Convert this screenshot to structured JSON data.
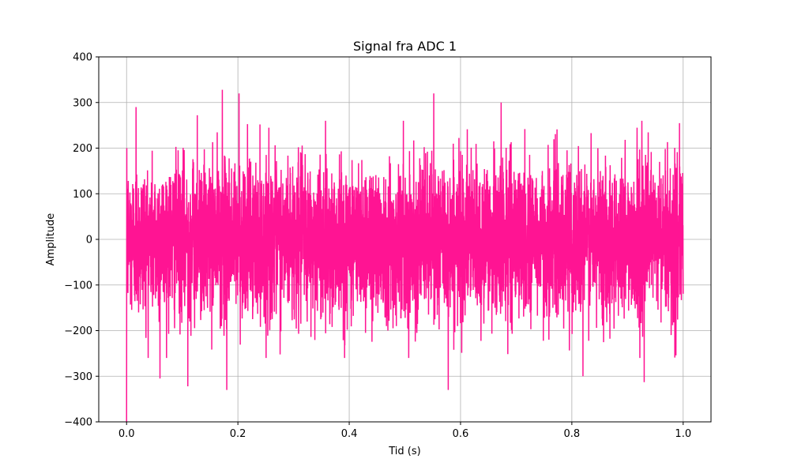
{
  "chart_data": {
    "type": "line",
    "title": "Signal fra ADC 1",
    "xlabel": "Tid (s)",
    "ylabel": "Amplitude",
    "xlim": [
      -0.05,
      1.05
    ],
    "ylim": [
      -400,
      400
    ],
    "xticks": [
      0.0,
      0.2,
      0.4,
      0.6,
      0.8,
      1.0
    ],
    "xtick_labels": [
      "0.0",
      "0.2",
      "0.4",
      "0.6",
      "0.8",
      "1.0"
    ],
    "yticks": [
      -400,
      -300,
      -200,
      -100,
      0,
      100,
      200,
      300,
      400
    ],
    "ytick_labels": [
      "−400",
      "−300",
      "−200",
      "−100",
      "0",
      "100",
      "200",
      "300",
      "400"
    ],
    "grid": true,
    "series": [
      {
        "color": "#ff1493",
        "x_range": [
          0.0,
          1.0
        ],
        "typical_band": [
          -200,
          200
        ],
        "peaks": [
          {
            "x": 0.0,
            "y": -400
          },
          {
            "x": 0.0,
            "y": 200
          },
          {
            "x": 0.017,
            "y": 290
          },
          {
            "x": 0.06,
            "y": -305
          },
          {
            "x": 0.11,
            "y": -322
          },
          {
            "x": 0.127,
            "y": 272
          },
          {
            "x": 0.172,
            "y": 328
          },
          {
            "x": 0.18,
            "y": -330
          },
          {
            "x": 0.202,
            "y": 320
          },
          {
            "x": 0.552,
            "y": 320
          },
          {
            "x": 0.578,
            "y": -330
          },
          {
            "x": 0.673,
            "y": 300
          },
          {
            "x": 0.82,
            "y": -300
          },
          {
            "x": 0.93,
            "y": -313
          }
        ]
      }
    ]
  }
}
